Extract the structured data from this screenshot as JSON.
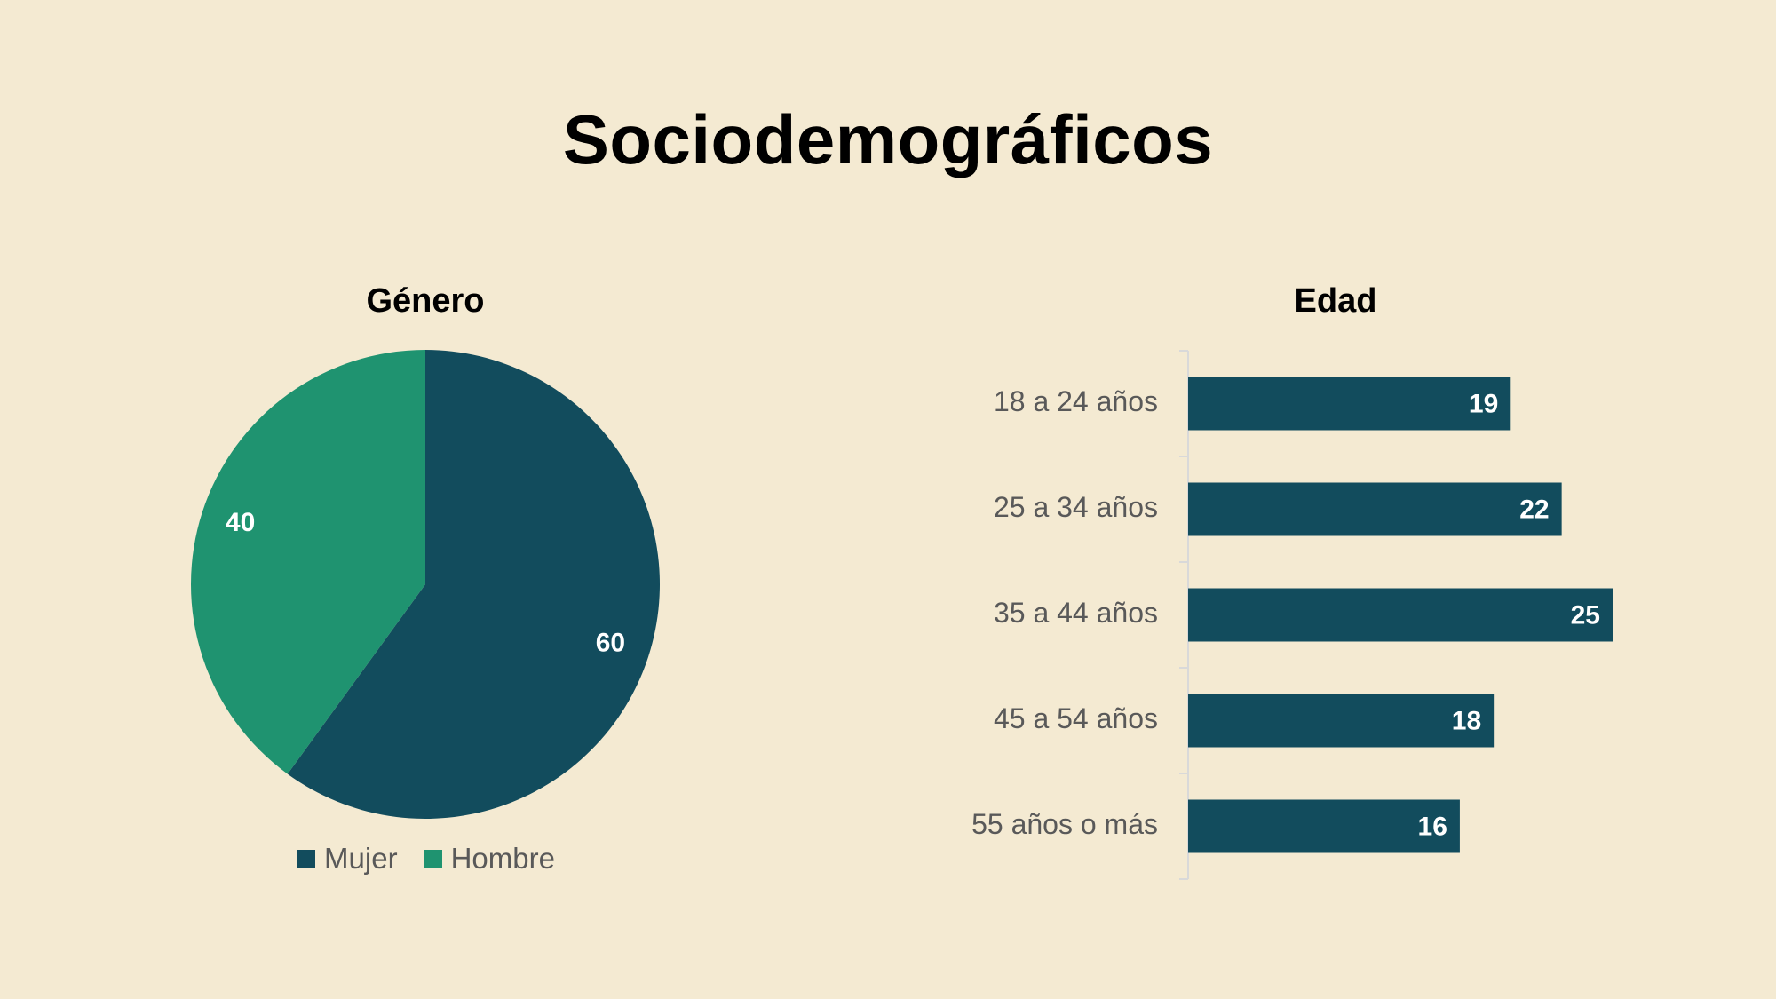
{
  "page": {
    "title": "Sociodemográficos"
  },
  "colors": {
    "background": "#f4ead2",
    "dark_teal": "#124c5d",
    "green": "#1f9370",
    "axis": "#d9d9d9",
    "label_text": "#595959",
    "data_label": "#ffffff"
  },
  "chart_data": [
    {
      "type": "pie",
      "title": "Género",
      "slices": [
        {
          "label": "Mujer",
          "value": 60,
          "color": "#124c5d"
        },
        {
          "label": "Hombre",
          "value": 40,
          "color": "#1f9370"
        }
      ],
      "legend": {
        "placement": "bottom",
        "items": [
          "Mujer",
          "Hombre"
        ]
      },
      "data_labels": true
    },
    {
      "type": "bar",
      "orientation": "horizontal",
      "title": "Edad",
      "categories": [
        "18 a 24 años",
        "25 a 34 años",
        "35 a 44 años",
        "45 a 54 años",
        "55 años o más"
      ],
      "values": [
        19,
        22,
        25,
        18,
        16
      ],
      "color": "#124c5d",
      "xlim": [
        0,
        25
      ],
      "grid": false,
      "data_labels": true
    }
  ]
}
